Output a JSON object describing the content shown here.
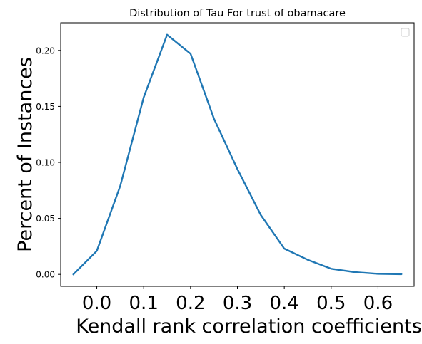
{
  "chart_data": {
    "type": "line",
    "title": "Distribution of Tau For trust of obamacare",
    "xlabel": "Kendall rank correlation coefficients",
    "ylabel": "Percent of Instances",
    "xlim": [
      -0.077,
      0.677
    ],
    "ylim": [
      -0.0107,
      0.2247
    ],
    "xticks": [
      "0.0",
      "0.1",
      "0.2",
      "0.3",
      "0.4",
      "0.5",
      "0.6"
    ],
    "yticks": [
      "0.00",
      "0.05",
      "0.10",
      "0.15",
      "0.20"
    ],
    "legend": "top-right, empty",
    "grid": false,
    "series": [
      {
        "x": [
          -0.05,
          0.0,
          0.05,
          0.1,
          0.15,
          0.2,
          0.25,
          0.3,
          0.35,
          0.4,
          0.45,
          0.5,
          0.55,
          0.6,
          0.65
        ],
        "values": [
          0.0,
          0.021,
          0.079,
          0.158,
          0.214,
          0.197,
          0.139,
          0.094,
          0.053,
          0.023,
          0.013,
          0.005,
          0.002,
          0.0005,
          0.0002
        ],
        "color": "#1f77b4"
      }
    ]
  }
}
